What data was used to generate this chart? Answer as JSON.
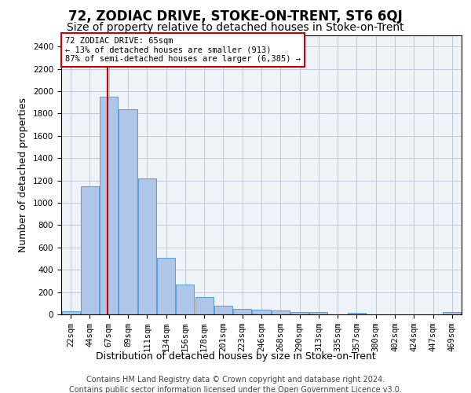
{
  "title": "72, ZODIAC DRIVE, STOKE-ON-TRENT, ST6 6QJ",
  "subtitle": "Size of property relative to detached houses in Stoke-on-Trent",
  "xlabel": "Distribution of detached houses by size in Stoke-on-Trent",
  "ylabel": "Number of detached properties",
  "footer_line1": "Contains HM Land Registry data © Crown copyright and database right 2024.",
  "footer_line2": "Contains public sector information licensed under the Open Government Licence v3.0.",
  "annotation_title": "72 ZODIAC DRIVE: 65sqm",
  "annotation_line1": "← 13% of detached houses are smaller (913)",
  "annotation_line2": "87% of semi-detached houses are larger (6,385) →",
  "bar_categories": [
    "22sqm",
    "44sqm",
    "67sqm",
    "89sqm",
    "111sqm",
    "134sqm",
    "156sqm",
    "178sqm",
    "201sqm",
    "223sqm",
    "246sqm",
    "268sqm",
    "290sqm",
    "313sqm",
    "335sqm",
    "357sqm",
    "380sqm",
    "402sqm",
    "424sqm",
    "447sqm",
    "469sqm"
  ],
  "bar_values": [
    30,
    1150,
    1950,
    1840,
    1220,
    510,
    270,
    155,
    80,
    50,
    45,
    35,
    20,
    20,
    0,
    15,
    0,
    0,
    0,
    0,
    20
  ],
  "bar_color": "#aec6e8",
  "bar_edge_color": "#5b9bd5",
  "vline_color": "#cc0000",
  "annotation_box_color": "#cc0000",
  "ylim_max": 2500,
  "yticks": [
    0,
    200,
    400,
    600,
    800,
    1000,
    1200,
    1400,
    1600,
    1800,
    2000,
    2200,
    2400
  ],
  "grid_color": "#c0c8d8",
  "bg_color": "#eef3f8",
  "title_fontsize": 12,
  "subtitle_fontsize": 10,
  "axis_label_fontsize": 9,
  "tick_fontsize": 7.5,
  "footer_fontsize": 7
}
